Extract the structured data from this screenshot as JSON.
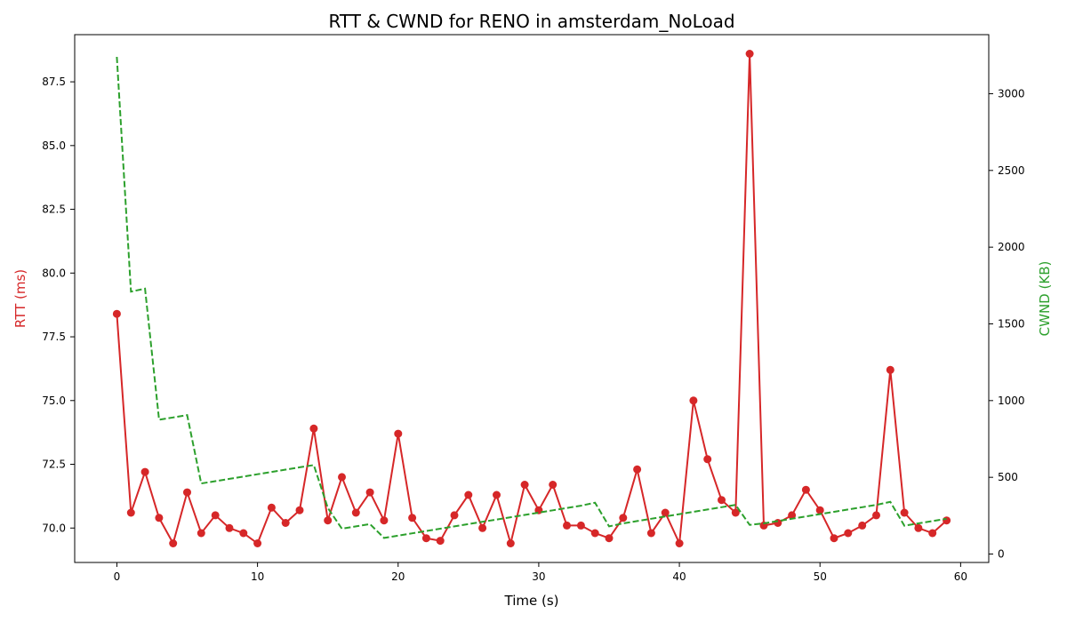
{
  "chart_data": {
    "type": "line",
    "title": "RTT & CWND for RENO in amsterdam_NoLoad",
    "xlabel": "Time (s)",
    "xlim": [
      -3,
      62
    ],
    "xticks": [
      0,
      10,
      20,
      30,
      40,
      50,
      60
    ],
    "grid": false,
    "legend": "none",
    "rtt_axis": {
      "label": "RTT (ms)",
      "color": "#d62728",
      "ylim": [
        68.65,
        89.35
      ],
      "ticks": [
        70.0,
        72.5,
        75.0,
        77.5,
        80.0,
        82.5,
        85.0,
        87.5
      ]
    },
    "cwnd_axis": {
      "label": "CWND (KB)",
      "color": "#2ca02c",
      "ylim": [
        -55,
        3385
      ],
      "ticks": [
        0,
        500,
        1000,
        1500,
        2000,
        2500,
        3000
      ]
    },
    "series": [
      {
        "axis": "rtt",
        "style": "solid-markers",
        "color": "#d62728",
        "x": [
          0,
          1,
          2,
          3,
          4,
          5,
          6,
          7,
          8,
          9,
          10,
          11,
          12,
          13,
          14,
          15,
          16,
          17,
          18,
          19,
          20,
          21,
          22,
          23,
          24,
          25,
          26,
          27,
          28,
          29,
          30,
          31,
          32,
          33,
          34,
          35,
          36,
          37,
          38,
          39,
          40,
          41,
          42,
          43,
          44,
          45,
          46,
          47,
          48,
          49,
          50,
          51,
          52,
          53,
          54,
          55,
          56,
          57,
          58,
          59
        ],
        "values": [
          78.4,
          70.6,
          72.2,
          70.4,
          69.4,
          71.4,
          69.8,
          70.5,
          70.0,
          69.8,
          69.4,
          70.8,
          70.2,
          70.7,
          73.9,
          70.3,
          72.0,
          70.6,
          71.4,
          70.3,
          73.7,
          70.4,
          69.6,
          69.5,
          70.5,
          71.3,
          70.0,
          71.3,
          69.4,
          71.7,
          70.7,
          71.7,
          70.1,
          70.1,
          69.8,
          69.6,
          70.4,
          72.3,
          69.8,
          70.6,
          69.4,
          75.0,
          72.7,
          71.1,
          70.6,
          88.6,
          70.1,
          70.2,
          70.5,
          71.5,
          70.7,
          69.6,
          69.8,
          70.1,
          70.5,
          76.2,
          70.6,
          70.0,
          69.8,
          70.3
        ]
      },
      {
        "axis": "cwnd",
        "style": "dashed",
        "color": "#2ca02c",
        "x": [
          0,
          1,
          2,
          3,
          4,
          5,
          6,
          7,
          8,
          9,
          10,
          11,
          12,
          13,
          14,
          15,
          16,
          17,
          18,
          19,
          20,
          21,
          22,
          23,
          24,
          25,
          26,
          27,
          28,
          29,
          30,
          31,
          32,
          33,
          34,
          35,
          36,
          37,
          38,
          39,
          40,
          41,
          42,
          43,
          44,
          45,
          46,
          47,
          48,
          49,
          50,
          51,
          52,
          53,
          54,
          55,
          56,
          57,
          58,
          59
        ],
        "values": [
          3240,
          1710,
          1730,
          875,
          890,
          905,
          460,
          475,
          490,
          505,
          520,
          535,
          550,
          565,
          580,
          300,
          165,
          180,
          195,
          105,
          120,
          135,
          150,
          165,
          180,
          195,
          210,
          225,
          240,
          255,
          270,
          285,
          300,
          315,
          335,
          180,
          200,
          215,
          230,
          245,
          260,
          275,
          290,
          305,
          320,
          190,
          200,
          215,
          230,
          245,
          260,
          275,
          290,
          305,
          320,
          340,
          185,
          200,
          215,
          230
        ]
      }
    ]
  }
}
